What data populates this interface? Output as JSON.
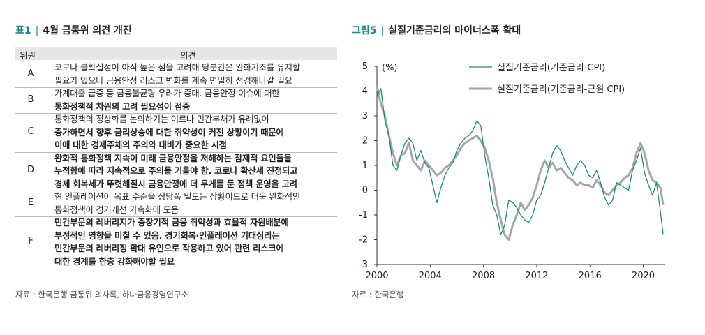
{
  "table": {
    "label": "표1",
    "title": "4월 금통위 의견 개진",
    "col_member": "위원",
    "col_opinion": "의견",
    "rows": [
      {
        "id": "A",
        "lines": [
          {
            "t": "코로나 불확실성이 아직 높은 점을 고려해 당분간은 완화기조를 유지할",
            "b": false
          },
          {
            "t": "필요가 있으나 금융안정 리스크 변화를 계속 면밀히 점검해나갈 필요",
            "b": false
          }
        ]
      },
      {
        "id": "B",
        "lines": [
          {
            "t": "가계대출 급증 등 금융불균형 우려가 증대. 금융안정 이슈에 대한",
            "b": false
          },
          {
            "t": "통화정책적 차원의 고려 필요성이 점증",
            "b": true
          }
        ]
      },
      {
        "id": "C",
        "lines": [
          {
            "t": "통화정책의 정상화를 논의하기는 이르나 민간부채가 유례없이",
            "b": false
          },
          {
            "t": "증가하면서 향후 금리상승에 대한 취약성이 커진 상황이기 때문에",
            "b": true
          },
          {
            "t": "이에 대한 경제주체의 주의와 대비가 중요한 시점",
            "b": true
          }
        ]
      },
      {
        "id": "D",
        "lines": [
          {
            "t": "완화적 통화정책 지속이 미래 금융안정을 저해하는 잠재적 요인들을",
            "b": true
          },
          {
            "t": "누적함에 따라 지속적으로 주의를 기울야 함. 코로나 확산세 진정되고",
            "b": true
          },
          {
            "t": "경제 회복세가 뚜렷해질시 금융안정에 더 무게를 둔 정책 운영을 고려",
            "b": true
          }
        ]
      },
      {
        "id": "E",
        "lines": [
          {
            "t": "현 인플레이션이 목표 수준을 상당폭 밑도는 상황이므로 더욱 완화적인",
            "b": false
          },
          {
            "t": "통화정책이 경기개선 가속화에 도움",
            "b": false
          }
        ]
      },
      {
        "id": "F",
        "lines": [
          {
            "t": "민간부문의 레버리지가 중장기적 금융 취약성과 효율적 자원배분에",
            "b": true
          },
          {
            "t": "부정적인 영향을 미칠 수 있음. 경기회복·인플레이션 기대심리는",
            "b": true
          },
          {
            "t": "민간부문의 레버리징 확대 유인으로 작용하고 있어 관련 리스크에",
            "b": true
          },
          {
            "t": "대한 경계를 한층 강화해야할 필요",
            "b": true
          }
        ]
      }
    ],
    "source": "자료 : 한국은행 금통위 의사록, 하나금융경영연구소"
  },
  "chart_panel": {
    "label": "그림5",
    "title": "실질기준금리의 마이너스폭 확대",
    "source": "자료 : 한국은행"
  },
  "chart_data": {
    "type": "line",
    "unit_label": "(%)",
    "ylim": [
      -3,
      5
    ],
    "yticks": [
      "5",
      "4",
      "3",
      "2",
      "1",
      "0",
      "-1",
      "-2",
      "-3"
    ],
    "xlim": [
      2000,
      2021.6
    ],
    "xticks": [
      "2000",
      "2004",
      "2008",
      "2012",
      "2016",
      "2020"
    ],
    "grid": false,
    "legend_position": "top-right",
    "colors": {
      "cpi": "#1a8a82",
      "core": "#a6a6a6"
    },
    "series": [
      {
        "name": "실질기준금리(기준금리-CPI)",
        "x": [
          2000.0,
          2000.3,
          2000.6,
          2000.9,
          2001.2,
          2001.5,
          2001.8,
          2002.1,
          2002.4,
          2002.7,
          2003.0,
          2003.3,
          2003.6,
          2003.9,
          2004.2,
          2004.5,
          2004.8,
          2005.1,
          2005.4,
          2005.7,
          2006.0,
          2006.3,
          2006.6,
          2006.9,
          2007.2,
          2007.5,
          2007.8,
          2008.1,
          2008.4,
          2008.7,
          2009.0,
          2009.3,
          2009.6,
          2009.9,
          2010.2,
          2010.5,
          2010.8,
          2011.1,
          2011.4,
          2011.7,
          2012.0,
          2012.3,
          2012.6,
          2012.9,
          2013.2,
          2013.5,
          2013.8,
          2014.1,
          2014.4,
          2014.7,
          2015.0,
          2015.3,
          2015.6,
          2015.9,
          2016.2,
          2016.5,
          2016.8,
          2017.1,
          2017.4,
          2017.7,
          2018.0,
          2018.3,
          2018.6,
          2018.9,
          2019.2,
          2019.5,
          2019.8,
          2020.1,
          2020.4,
          2020.7,
          2021.0,
          2021.3,
          2021.5
        ],
        "values": [
          3.8,
          4.1,
          2.8,
          2.2,
          1.0,
          0.8,
          1.4,
          1.9,
          2.1,
          1.9,
          1.2,
          1.6,
          1.1,
          0.9,
          0.2,
          -0.5,
          0.1,
          0.6,
          0.9,
          1.1,
          1.6,
          1.9,
          2.1,
          2.2,
          2.4,
          2.8,
          2.6,
          1.4,
          0.5,
          -0.6,
          -1.0,
          -1.8,
          -1.4,
          -0.4,
          -0.5,
          -0.7,
          -1.0,
          -1.2,
          -1.3,
          -1.0,
          -0.4,
          -0.2,
          0.3,
          0.9,
          1.5,
          1.8,
          1.6,
          1.2,
          0.9,
          0.6,
          1.0,
          1.2,
          1.0,
          0.6,
          0.5,
          0.8,
          0.3,
          -0.3,
          -0.6,
          -0.4,
          0.3,
          0.2,
          0.1,
          0.0,
          0.8,
          1.2,
          1.7,
          0.7,
          0.2,
          -0.2,
          0.3,
          -0.9,
          -1.8
        ]
      },
      {
        "name": "실질기준금리(기준금리-근원 CPI)",
        "x": [
          2000.0,
          2000.3,
          2000.6,
          2000.9,
          2001.2,
          2001.5,
          2001.8,
          2002.1,
          2002.4,
          2002.7,
          2003.0,
          2003.3,
          2003.6,
          2003.9,
          2004.2,
          2004.5,
          2004.8,
          2005.1,
          2005.4,
          2005.7,
          2006.0,
          2006.3,
          2006.6,
          2006.9,
          2007.2,
          2007.5,
          2007.8,
          2008.1,
          2008.4,
          2008.7,
          2009.0,
          2009.3,
          2009.6,
          2009.9,
          2010.2,
          2010.5,
          2010.8,
          2011.1,
          2011.4,
          2011.7,
          2012.0,
          2012.3,
          2012.6,
          2012.9,
          2013.2,
          2013.5,
          2013.8,
          2014.1,
          2014.4,
          2014.7,
          2015.0,
          2015.3,
          2015.6,
          2015.9,
          2016.2,
          2016.5,
          2016.8,
          2017.1,
          2017.4,
          2017.7,
          2018.0,
          2018.3,
          2018.6,
          2018.9,
          2019.2,
          2019.5,
          2019.8,
          2020.1,
          2020.4,
          2020.7,
          2021.0,
          2021.3,
          2021.5
        ],
        "values": [
          4.2,
          3.5,
          3.0,
          2.2,
          1.5,
          1.0,
          1.4,
          1.5,
          1.9,
          1.2,
          1.0,
          0.8,
          1.2,
          1.0,
          0.8,
          0.6,
          0.7,
          0.9,
          1.0,
          1.2,
          1.4,
          1.7,
          1.9,
          2.0,
          2.1,
          2.2,
          2.0,
          1.7,
          1.2,
          0.5,
          -0.5,
          -1.2,
          -1.8,
          -2.0,
          -1.4,
          -1.0,
          -0.5,
          -0.8,
          -0.6,
          -0.3,
          0.2,
          0.8,
          1.2,
          0.9,
          1.1,
          0.8,
          0.9,
          0.7,
          0.5,
          0.4,
          0.2,
          0.3,
          0.2,
          0.2,
          0.1,
          0.4,
          0.2,
          -0.1,
          -0.2,
          0.0,
          0.2,
          0.3,
          0.5,
          0.6,
          0.9,
          1.5,
          1.9,
          1.5,
          0.8,
          0.4,
          0.3,
          0.1,
          -0.6
        ]
      }
    ]
  }
}
